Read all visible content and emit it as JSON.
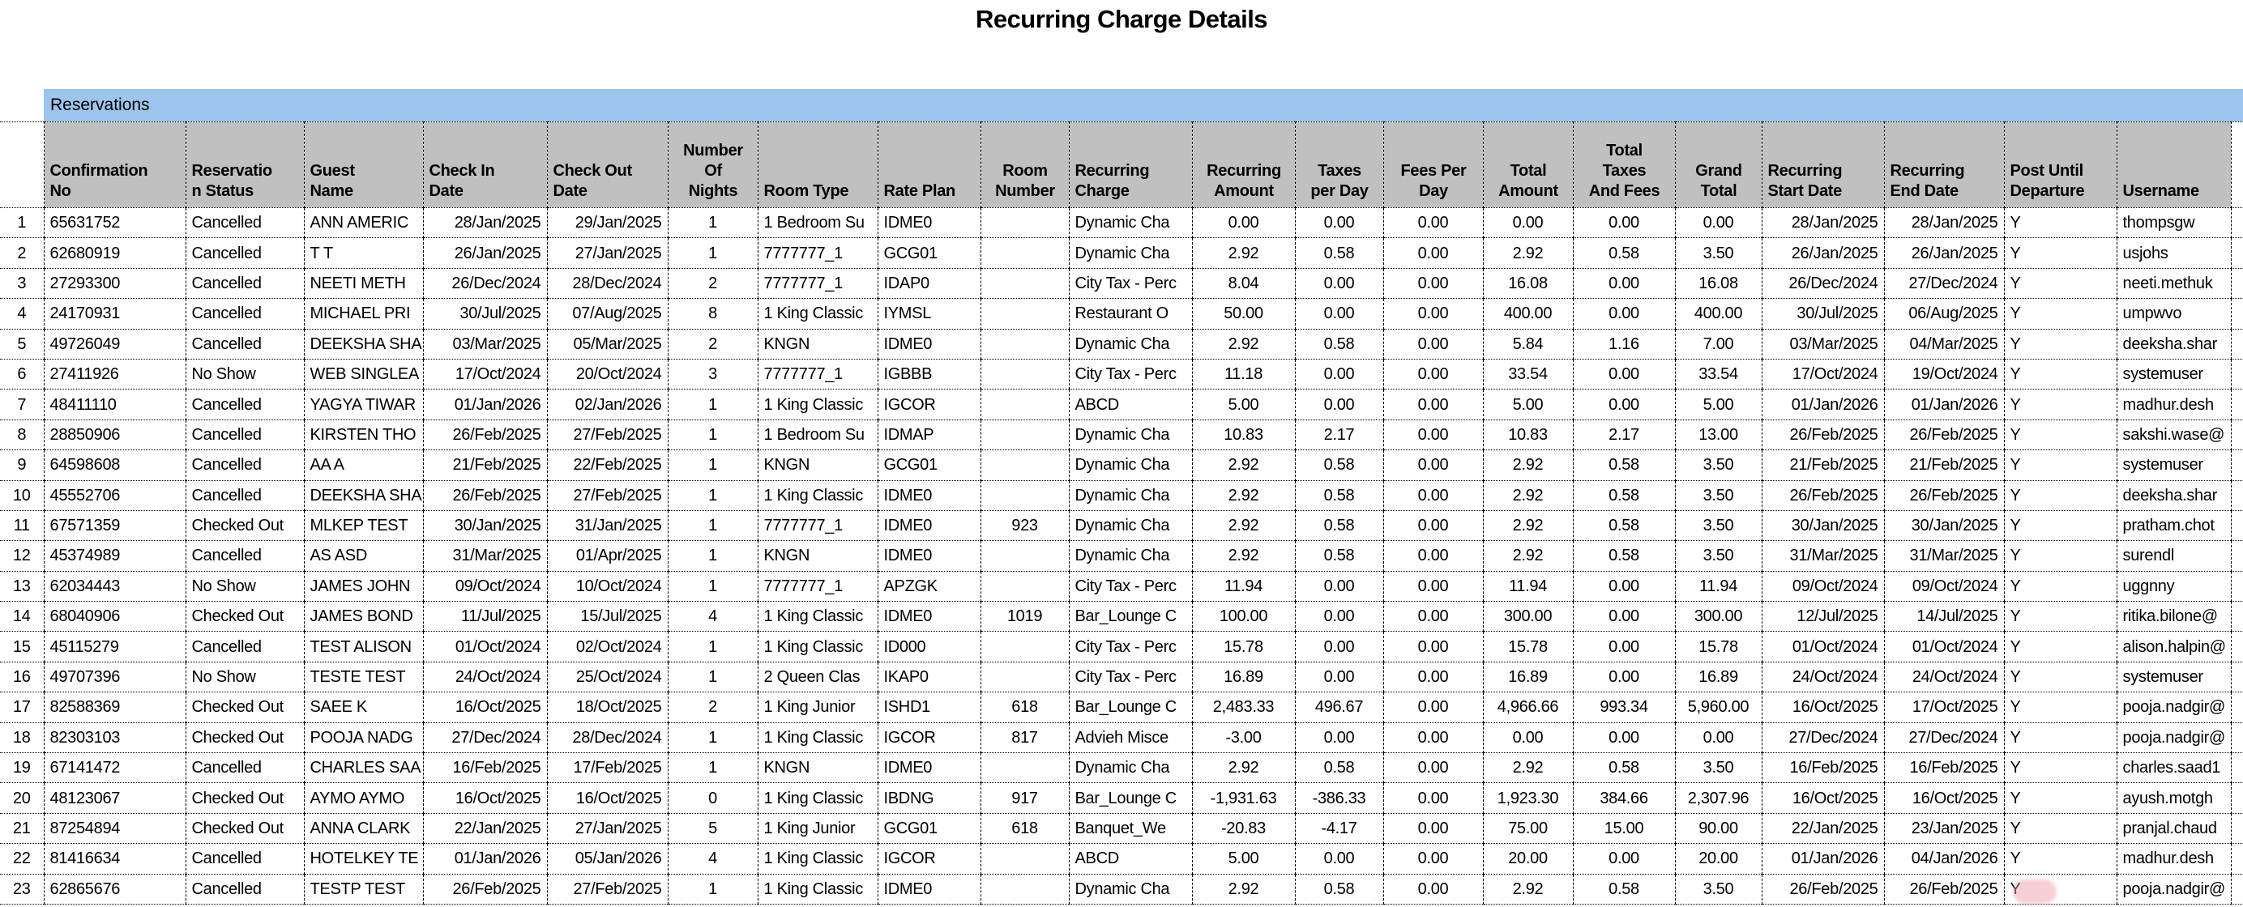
{
  "page": {
    "title": "Recurring Charge Details"
  },
  "band": {
    "label": "Reservations"
  },
  "colors": {
    "band_bg": "#9dc4ec",
    "header_bg": "#c0c0c0",
    "border": "#000000"
  },
  "table": {
    "columns": [
      {
        "id": "row_index",
        "label": "",
        "width": 54,
        "align": "center",
        "header_align": "left"
      },
      {
        "id": "confirmation_no",
        "label": "Confirmation\nNo",
        "width": 175,
        "align": "left",
        "header_align": "left"
      },
      {
        "id": "reservation_status",
        "label": "Reservatio\nn Status",
        "width": 146,
        "align": "left",
        "header_align": "left"
      },
      {
        "id": "guest_name",
        "label": "Guest\nName",
        "width": 147,
        "align": "left",
        "header_align": "left"
      },
      {
        "id": "check_in_date",
        "label": "Check In\nDate",
        "width": 153,
        "align": "right",
        "header_align": "left"
      },
      {
        "id": "check_out_date",
        "label": "Check Out\nDate",
        "width": 149,
        "align": "right",
        "header_align": "left"
      },
      {
        "id": "number_of_nights",
        "label": "Number\nOf\nNights",
        "width": 111,
        "align": "center",
        "header_align": "center"
      },
      {
        "id": "room_type",
        "label": "Room Type",
        "width": 148,
        "align": "left",
        "header_align": "left"
      },
      {
        "id": "rate_plan",
        "label": "Rate Plan",
        "width": 127,
        "align": "left",
        "header_align": "left"
      },
      {
        "id": "room_number",
        "label": "Room\nNumber",
        "width": 109,
        "align": "center",
        "header_align": "center"
      },
      {
        "id": "recurring_charge",
        "label": "Recurring\nCharge",
        "width": 152,
        "align": "left",
        "header_align": "left"
      },
      {
        "id": "recurring_amount",
        "label": "Recurring\nAmount",
        "width": 127,
        "align": "center",
        "header_align": "center"
      },
      {
        "id": "taxes_per_day",
        "label": "Taxes\nper Day",
        "width": 109,
        "align": "center",
        "header_align": "center"
      },
      {
        "id": "fees_per_day",
        "label": "Fees Per\nDay",
        "width": 123,
        "align": "center",
        "header_align": "center"
      },
      {
        "id": "total_amount",
        "label": "Total\nAmount",
        "width": 111,
        "align": "center",
        "header_align": "center"
      },
      {
        "id": "total_taxes_and_fees",
        "label": "Total\nTaxes\nAnd Fees",
        "width": 126,
        "align": "center",
        "header_align": "center"
      },
      {
        "id": "grand_total",
        "label": "Grand\nTotal",
        "width": 107,
        "align": "center",
        "header_align": "center"
      },
      {
        "id": "recurring_start_date",
        "label": "Recurring\nStart Date",
        "width": 151,
        "align": "right",
        "header_align": "left"
      },
      {
        "id": "recurring_end_date",
        "label": "Recurring\nEnd Date",
        "width": 148,
        "align": "right",
        "header_align": "left"
      },
      {
        "id": "post_until_departure",
        "label": "Post Until\nDeparture",
        "width": 139,
        "align": "left",
        "header_align": "left"
      },
      {
        "id": "username",
        "label": "Username",
        "width": 141,
        "align": "left",
        "header_align": "left"
      },
      {
        "id": "overflow_stub",
        "label": "",
        "width": 24,
        "align": "left",
        "header_align": "left"
      }
    ],
    "rows": [
      [
        "1",
        "65631752",
        "Cancelled",
        "ANN AMERIC",
        "28/Jan/2025",
        "29/Jan/2025",
        "1",
        "1 Bedroom Su",
        "IDME0",
        "",
        "Dynamic Cha",
        "0.00",
        "0.00",
        "0.00",
        "0.00",
        "0.00",
        "0.00",
        "28/Jan/2025",
        "28/Jan/2025",
        "Y",
        "thompsgw"
      ],
      [
        "2",
        "62680919",
        "Cancelled",
        "T T",
        "26/Jan/2025",
        "27/Jan/2025",
        "1",
        "7777777_1",
        "GCG01",
        "",
        "Dynamic Cha",
        "2.92",
        "0.58",
        "0.00",
        "2.92",
        "0.58",
        "3.50",
        "26/Jan/2025",
        "26/Jan/2025",
        "Y",
        "usjohs"
      ],
      [
        "3",
        "27293300",
        "Cancelled",
        "NEETI METH",
        "26/Dec/2024",
        "28/Dec/2024",
        "2",
        "7777777_1",
        "IDAP0",
        "",
        "City Tax - Perc",
        "8.04",
        "0.00",
        "0.00",
        "16.08",
        "0.00",
        "16.08",
        "26/Dec/2024",
        "27/Dec/2024",
        "Y",
        "neeti.methuk"
      ],
      [
        "4",
        "24170931",
        "Cancelled",
        "MICHAEL PRI",
        "30/Jul/2025",
        "07/Aug/2025",
        "8",
        "1 King Classic",
        "IYMSL",
        "",
        "Restaurant O",
        "50.00",
        "0.00",
        "0.00",
        "400.00",
        "0.00",
        "400.00",
        "30/Jul/2025",
        "06/Aug/2025",
        "Y",
        "umpwvo"
      ],
      [
        "5",
        "49726049",
        "Cancelled",
        "DEEKSHA SHA",
        "03/Mar/2025",
        "05/Mar/2025",
        "2",
        "KNGN",
        "IDME0",
        "",
        "Dynamic Cha",
        "2.92",
        "0.58",
        "0.00",
        "5.84",
        "1.16",
        "7.00",
        "03/Mar/2025",
        "04/Mar/2025",
        "Y",
        "deeksha.shar"
      ],
      [
        "6",
        "27411926",
        "No Show",
        "WEB SINGLEA",
        "17/Oct/2024",
        "20/Oct/2024",
        "3",
        "7777777_1",
        "IGBBB",
        "",
        "City Tax - Perc",
        "11.18",
        "0.00",
        "0.00",
        "33.54",
        "0.00",
        "33.54",
        "17/Oct/2024",
        "19/Oct/2024",
        "Y",
        "systemuser"
      ],
      [
        "7",
        "48411110",
        "Cancelled",
        "YAGYA TIWAR",
        "01/Jan/2026",
        "02/Jan/2026",
        "1",
        "1 King Classic",
        "IGCOR",
        "",
        "ABCD",
        "5.00",
        "0.00",
        "0.00",
        "5.00",
        "0.00",
        "5.00",
        "01/Jan/2026",
        "01/Jan/2026",
        "Y",
        "madhur.desh"
      ],
      [
        "8",
        "28850906",
        "Cancelled",
        "KIRSTEN THO",
        "26/Feb/2025",
        "27/Feb/2025",
        "1",
        "1 Bedroom Su",
        "IDMAP",
        "",
        "Dynamic Cha",
        "10.83",
        "2.17",
        "0.00",
        "10.83",
        "2.17",
        "13.00",
        "26/Feb/2025",
        "26/Feb/2025",
        "Y",
        "sakshi.wase@"
      ],
      [
        "9",
        "64598608",
        "Cancelled",
        "AA A",
        "21/Feb/2025",
        "22/Feb/2025",
        "1",
        "KNGN",
        "GCG01",
        "",
        "Dynamic Cha",
        "2.92",
        "0.58",
        "0.00",
        "2.92",
        "0.58",
        "3.50",
        "21/Feb/2025",
        "21/Feb/2025",
        "Y",
        "systemuser"
      ],
      [
        "10",
        "45552706",
        "Cancelled",
        "DEEKSHA SHA",
        "26/Feb/2025",
        "27/Feb/2025",
        "1",
        "1 King Classic",
        "IDME0",
        "",
        "Dynamic Cha",
        "2.92",
        "0.58",
        "0.00",
        "2.92",
        "0.58",
        "3.50",
        "26/Feb/2025",
        "26/Feb/2025",
        "Y",
        "deeksha.shar"
      ],
      [
        "11",
        "67571359",
        "Checked Out",
        "MLKEP TEST",
        "30/Jan/2025",
        "31/Jan/2025",
        "1",
        "7777777_1",
        "IDME0",
        "923",
        "Dynamic Cha",
        "2.92",
        "0.58",
        "0.00",
        "2.92",
        "0.58",
        "3.50",
        "30/Jan/2025",
        "30/Jan/2025",
        "Y",
        "pratham.chot"
      ],
      [
        "12",
        "45374989",
        "Cancelled",
        "AS ASD",
        "31/Mar/2025",
        "01/Apr/2025",
        "1",
        "KNGN",
        "IDME0",
        "",
        "Dynamic Cha",
        "2.92",
        "0.58",
        "0.00",
        "2.92",
        "0.58",
        "3.50",
        "31/Mar/2025",
        "31/Mar/2025",
        "Y",
        "surendl"
      ],
      [
        "13",
        "62034443",
        "No Show",
        "JAMES JOHN",
        "09/Oct/2024",
        "10/Oct/2024",
        "1",
        "7777777_1",
        "APZGK",
        "",
        "City Tax - Perc",
        "11.94",
        "0.00",
        "0.00",
        "11.94",
        "0.00",
        "11.94",
        "09/Oct/2024",
        "09/Oct/2024",
        "Y",
        "uggnny"
      ],
      [
        "14",
        "68040906",
        "Checked Out",
        "JAMES  BOND",
        "11/Jul/2025",
        "15/Jul/2025",
        "4",
        "1 King Classic",
        "IDME0",
        "1019",
        "Bar_Lounge C",
        "100.00",
        "0.00",
        "0.00",
        "300.00",
        "0.00",
        "300.00",
        "12/Jul/2025",
        "14/Jul/2025",
        "Y",
        "ritika.bilone@"
      ],
      [
        "15",
        "45115279",
        "Cancelled",
        "TEST ALISON",
        "01/Oct/2024",
        "02/Oct/2024",
        "1",
        "1 King Classic",
        "ID000",
        "",
        "City Tax - Perc",
        "15.78",
        "0.00",
        "0.00",
        "15.78",
        "0.00",
        "15.78",
        "01/Oct/2024",
        "01/Oct/2024",
        "Y",
        "alison.halpin@"
      ],
      [
        "16",
        "49707396",
        "No Show",
        "TESTE TEST",
        "24/Oct/2024",
        "25/Oct/2024",
        "1",
        "2 Queen Clas",
        "IKAP0",
        "",
        "City Tax - Perc",
        "16.89",
        "0.00",
        "0.00",
        "16.89",
        "0.00",
        "16.89",
        "24/Oct/2024",
        "24/Oct/2024",
        "Y",
        "systemuser"
      ],
      [
        "17",
        "82588369",
        "Checked Out",
        "SAEE K",
        "16/Oct/2025",
        "18/Oct/2025",
        "2",
        "1 King Junior",
        "ISHD1",
        "618",
        "Bar_Lounge C",
        "2,483.33",
        "496.67",
        "0.00",
        "4,966.66",
        "993.34",
        "5,960.00",
        "16/Oct/2025",
        "17/Oct/2025",
        "Y",
        "pooja.nadgir@"
      ],
      [
        "18",
        "82303103",
        "Checked Out",
        "POOJA  NADG",
        "27/Dec/2024",
        "28/Dec/2024",
        "1",
        "1 King Classic",
        "IGCOR",
        "817",
        "Advieh  Misce",
        "-3.00",
        "0.00",
        "0.00",
        "0.00",
        "0.00",
        "0.00",
        "27/Dec/2024",
        "27/Dec/2024",
        "Y",
        "pooja.nadgir@"
      ],
      [
        "19",
        "67141472",
        "Cancelled",
        "CHARLES SAA",
        "16/Feb/2025",
        "17/Feb/2025",
        "1",
        "KNGN",
        "IDME0",
        "",
        "Dynamic Cha",
        "2.92",
        "0.58",
        "0.00",
        "2.92",
        "0.58",
        "3.50",
        "16/Feb/2025",
        "16/Feb/2025",
        "Y",
        "charles.saad1"
      ],
      [
        "20",
        "48123067",
        "Checked Out",
        "AYMO AYMO",
        "16/Oct/2025",
        "16/Oct/2025",
        "0",
        "1 King Classic",
        "IBDNG",
        "917",
        "Bar_Lounge C",
        "-1,931.63",
        "-386.33",
        "0.00",
        "1,923.30",
        "384.66",
        "2,307.96",
        "16/Oct/2025",
        "16/Oct/2025",
        "Y",
        "ayush.motgh"
      ],
      [
        "21",
        "87254894",
        "Checked Out",
        "ANNA CLARK",
        "22/Jan/2025",
        "27/Jan/2025",
        "5",
        "1 King Junior",
        "GCG01",
        "618",
        "Banquet_We",
        "-20.83",
        "-4.17",
        "0.00",
        "75.00",
        "15.00",
        "90.00",
        "22/Jan/2025",
        "23/Jan/2025",
        "Y",
        "pranjal.chaud"
      ],
      [
        "22",
        "81416634",
        "Cancelled",
        "HOTELKEY TE",
        "01/Jan/2026",
        "05/Jan/2026",
        "4",
        "1 King Classic",
        "IGCOR",
        "",
        "ABCD",
        "5.00",
        "0.00",
        "0.00",
        "20.00",
        "0.00",
        "20.00",
        "01/Jan/2026",
        "04/Jan/2026",
        "Y",
        "madhur.desh"
      ],
      [
        "23",
        "62865676",
        "Cancelled",
        "TESTP TEST",
        "26/Feb/2025",
        "27/Feb/2025",
        "1",
        "1 King Classic",
        "IDME0",
        "",
        "Dynamic Cha",
        "2.92",
        "0.58",
        "0.00",
        "2.92",
        "0.58",
        "3.50",
        "26/Feb/2025",
        "26/Feb/2025",
        "Y",
        "pooja.nadgir@"
      ]
    ]
  }
}
